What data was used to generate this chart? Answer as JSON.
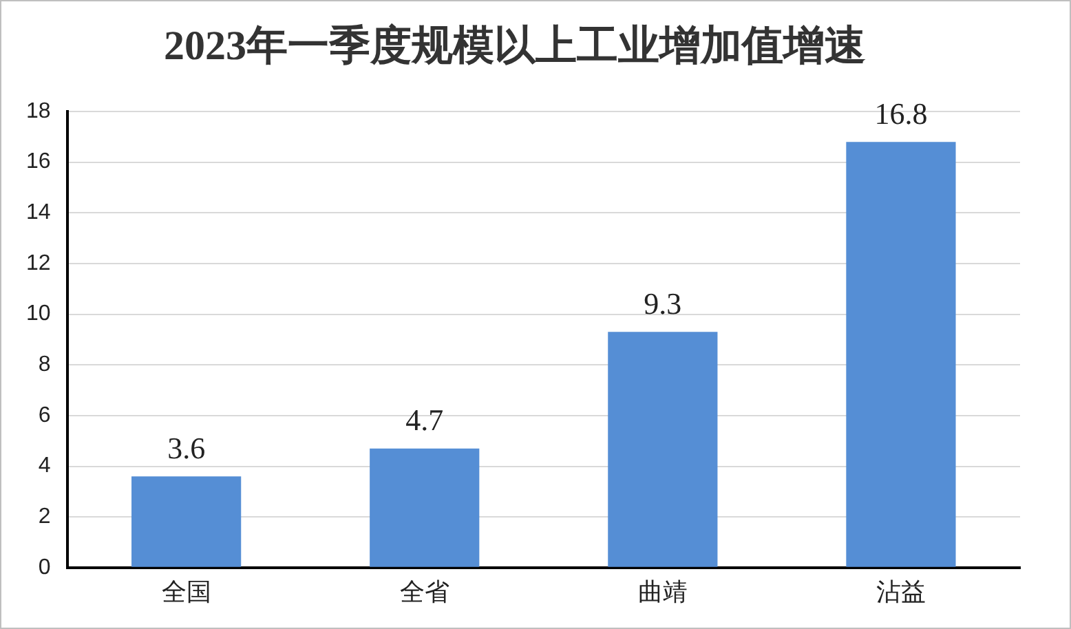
{
  "chart_data": {
    "type": "bar",
    "title": "2023年一季度规模以上工业增加值增速",
    "categories": [
      "全国",
      "全省",
      "曲靖",
      "沾益"
    ],
    "values": [
      3.6,
      4.7,
      9.3,
      16.8
    ],
    "color": "#558ed5",
    "ylim": [
      0,
      18
    ],
    "yticks": [
      0,
      2,
      4,
      6,
      8,
      10,
      12,
      14,
      16,
      18
    ],
    "grid": "y",
    "data_labels": true,
    "legend": false
  }
}
